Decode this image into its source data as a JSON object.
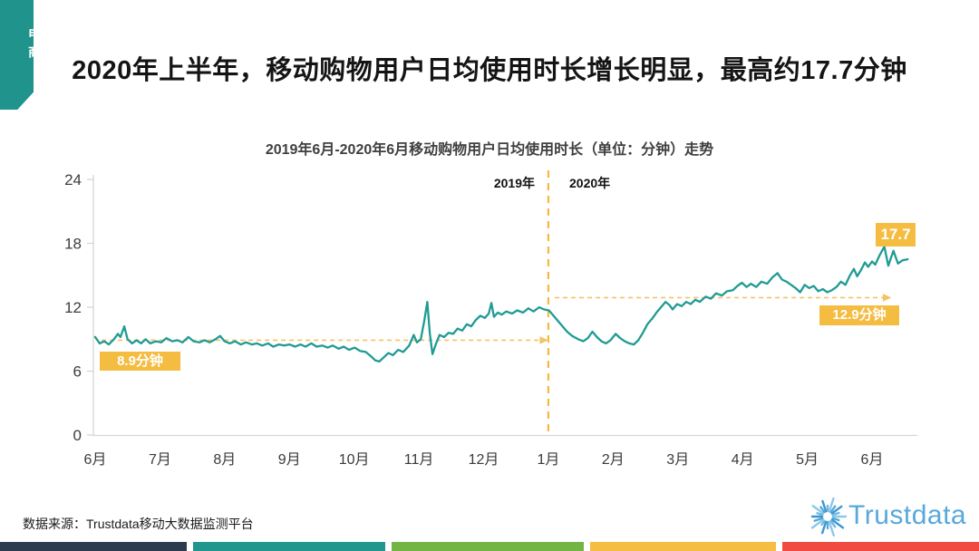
{
  "ribbon": {
    "label": "电商",
    "color": "#21938D"
  },
  "header": {
    "title": "2020年上半年，移动购物用户日均使用时长增长明显，最高约17.7分钟"
  },
  "footer": {
    "source_label": "数据来源：Trustdata移动大数据监测平台",
    "logo_text": "Trustdata",
    "logo_color": "#57A9DB",
    "bar_colors": [
      "#2D3B4E",
      "#21968F",
      "#72B544",
      "#F5BD42",
      "#F04A42"
    ]
  },
  "chart_data": {
    "type": "line",
    "title": "2019年6月-2020年6月移动购物用户日均使用时长（单位：分钟）走势",
    "x_labels": [
      "6月",
      "7月",
      "8月",
      "9月",
      "10月",
      "11月",
      "12月",
      "1月",
      "2月",
      "3月",
      "4月",
      "5月",
      "6月"
    ],
    "y_ticks": [
      0,
      6,
      12,
      18,
      24
    ],
    "ylim": [
      0,
      24
    ],
    "grid": false,
    "legend": "none",
    "line_color": "#1F9B94",
    "accent_color": "#F5B942",
    "dash_color": "#F3C467",
    "year_labels": {
      "left": "2019年",
      "right": "2020年"
    },
    "year_divider_month": 7,
    "annotations": [
      {
        "label": "8.9分钟",
        "value": 8.9,
        "span_months": [
          0.1,
          7.0
        ],
        "style": "dashed-arrow"
      },
      {
        "label": "12.9分钟",
        "value": 12.9,
        "span_months": [
          7.1,
          12.3
        ],
        "style": "dashed-arrow"
      },
      {
        "label": "17.7",
        "value": 17.7,
        "at_month": 12.19,
        "style": "peak-badge"
      }
    ],
    "series": [
      {
        "name": "移动购物用户日均使用时长（分钟）",
        "x_unit": "months since 2019-06",
        "points": [
          [
            0.0,
            9.2
          ],
          [
            0.07,
            8.6
          ],
          [
            0.14,
            8.8
          ],
          [
            0.21,
            8.5
          ],
          [
            0.29,
            9.0
          ],
          [
            0.35,
            9.5
          ],
          [
            0.39,
            9.2
          ],
          [
            0.45,
            10.2
          ],
          [
            0.5,
            9.0
          ],
          [
            0.57,
            8.6
          ],
          [
            0.64,
            8.9
          ],
          [
            0.71,
            8.6
          ],
          [
            0.78,
            9.0
          ],
          [
            0.85,
            8.6
          ],
          [
            0.94,
            8.8
          ],
          [
            1.02,
            8.7
          ],
          [
            1.1,
            9.1
          ],
          [
            1.19,
            8.8
          ],
          [
            1.27,
            8.9
          ],
          [
            1.35,
            8.7
          ],
          [
            1.44,
            9.2
          ],
          [
            1.52,
            8.8
          ],
          [
            1.61,
            8.7
          ],
          [
            1.69,
            8.9
          ],
          [
            1.77,
            8.7
          ],
          [
            1.86,
            9.0
          ],
          [
            1.93,
            9.3
          ],
          [
            2.0,
            8.8
          ],
          [
            2.08,
            8.6
          ],
          [
            2.16,
            8.8
          ],
          [
            2.25,
            8.5
          ],
          [
            2.33,
            8.7
          ],
          [
            2.42,
            8.5
          ],
          [
            2.5,
            8.6
          ],
          [
            2.58,
            8.4
          ],
          [
            2.67,
            8.6
          ],
          [
            2.75,
            8.3
          ],
          [
            2.84,
            8.5
          ],
          [
            2.92,
            8.4
          ],
          [
            3.0,
            8.5
          ],
          [
            3.09,
            8.3
          ],
          [
            3.17,
            8.5
          ],
          [
            3.25,
            8.3
          ],
          [
            3.34,
            8.6
          ],
          [
            3.42,
            8.3
          ],
          [
            3.51,
            8.4
          ],
          [
            3.59,
            8.2
          ],
          [
            3.67,
            8.4
          ],
          [
            3.76,
            8.1
          ],
          [
            3.84,
            8.3
          ],
          [
            3.92,
            8.0
          ],
          [
            4.01,
            8.2
          ],
          [
            4.09,
            7.9
          ],
          [
            4.18,
            7.8
          ],
          [
            4.26,
            7.4
          ],
          [
            4.33,
            7.0
          ],
          [
            4.39,
            6.9
          ],
          [
            4.46,
            7.3
          ],
          [
            4.53,
            7.7
          ],
          [
            4.6,
            7.5
          ],
          [
            4.68,
            8.0
          ],
          [
            4.76,
            7.8
          ],
          [
            4.85,
            8.4
          ],
          [
            4.92,
            9.4
          ],
          [
            4.97,
            8.7
          ],
          [
            5.03,
            9.0
          ],
          [
            5.08,
            10.6
          ],
          [
            5.13,
            12.5
          ],
          [
            5.17,
            9.5
          ],
          [
            5.21,
            7.6
          ],
          [
            5.26,
            8.5
          ],
          [
            5.32,
            9.4
          ],
          [
            5.39,
            9.2
          ],
          [
            5.46,
            9.6
          ],
          [
            5.53,
            9.5
          ],
          [
            5.6,
            10.0
          ],
          [
            5.67,
            9.8
          ],
          [
            5.74,
            10.4
          ],
          [
            5.81,
            10.2
          ],
          [
            5.88,
            10.8
          ],
          [
            5.95,
            11.2
          ],
          [
            6.02,
            11.0
          ],
          [
            6.08,
            11.4
          ],
          [
            6.12,
            12.4
          ],
          [
            6.16,
            11.1
          ],
          [
            6.22,
            11.5
          ],
          [
            6.28,
            11.3
          ],
          [
            6.35,
            11.6
          ],
          [
            6.44,
            11.4
          ],
          [
            6.52,
            11.7
          ],
          [
            6.61,
            11.5
          ],
          [
            6.69,
            11.9
          ],
          [
            6.77,
            11.6
          ],
          [
            6.86,
            12.0
          ],
          [
            6.93,
            11.8
          ],
          [
            7.01,
            11.7
          ],
          [
            7.08,
            11.2
          ],
          [
            7.15,
            10.7
          ],
          [
            7.22,
            10.2
          ],
          [
            7.29,
            9.7
          ],
          [
            7.37,
            9.3
          ],
          [
            7.46,
            9.0
          ],
          [
            7.54,
            8.8
          ],
          [
            7.61,
            9.1
          ],
          [
            7.68,
            9.7
          ],
          [
            7.75,
            9.2
          ],
          [
            7.82,
            8.8
          ],
          [
            7.89,
            8.6
          ],
          [
            7.96,
            8.9
          ],
          [
            8.04,
            9.5
          ],
          [
            8.11,
            9.1
          ],
          [
            8.18,
            8.8
          ],
          [
            8.25,
            8.6
          ],
          [
            8.32,
            8.5
          ],
          [
            8.39,
            8.9
          ],
          [
            8.46,
            9.6
          ],
          [
            8.53,
            10.4
          ],
          [
            8.6,
            10.9
          ],
          [
            8.67,
            11.5
          ],
          [
            8.74,
            12.0
          ],
          [
            8.81,
            12.5
          ],
          [
            8.87,
            12.2
          ],
          [
            8.92,
            11.8
          ],
          [
            8.99,
            12.3
          ],
          [
            9.06,
            12.1
          ],
          [
            9.13,
            12.5
          ],
          [
            9.2,
            12.3
          ],
          [
            9.27,
            12.7
          ],
          [
            9.34,
            12.5
          ],
          [
            9.43,
            13.0
          ],
          [
            9.51,
            12.8
          ],
          [
            9.59,
            13.3
          ],
          [
            9.68,
            13.1
          ],
          [
            9.76,
            13.5
          ],
          [
            9.85,
            13.6
          ],
          [
            9.92,
            14.0
          ],
          [
            9.99,
            14.3
          ],
          [
            10.06,
            13.9
          ],
          [
            10.13,
            14.2
          ],
          [
            10.21,
            13.9
          ],
          [
            10.29,
            14.4
          ],
          [
            10.38,
            14.2
          ],
          [
            10.46,
            14.8
          ],
          [
            10.54,
            15.2
          ],
          [
            10.61,
            14.6
          ],
          [
            10.68,
            14.4
          ],
          [
            10.75,
            14.1
          ],
          [
            10.82,
            13.8
          ],
          [
            10.89,
            13.4
          ],
          [
            10.96,
            14.1
          ],
          [
            11.03,
            13.8
          ],
          [
            11.1,
            14.0
          ],
          [
            11.17,
            13.5
          ],
          [
            11.24,
            13.7
          ],
          [
            11.31,
            13.4
          ],
          [
            11.38,
            13.6
          ],
          [
            11.45,
            13.9
          ],
          [
            11.52,
            14.4
          ],
          [
            11.59,
            14.1
          ],
          [
            11.66,
            15.0
          ],
          [
            11.72,
            15.6
          ],
          [
            11.77,
            14.9
          ],
          [
            11.83,
            15.5
          ],
          [
            11.89,
            16.2
          ],
          [
            11.94,
            15.8
          ],
          [
            12.0,
            16.3
          ],
          [
            12.05,
            16.0
          ],
          [
            12.11,
            16.8
          ],
          [
            12.19,
            17.7
          ],
          [
            12.25,
            15.9
          ],
          [
            12.33,
            17.3
          ],
          [
            12.4,
            16.1
          ],
          [
            12.47,
            16.4
          ],
          [
            12.55,
            16.5
          ]
        ]
      }
    ]
  }
}
